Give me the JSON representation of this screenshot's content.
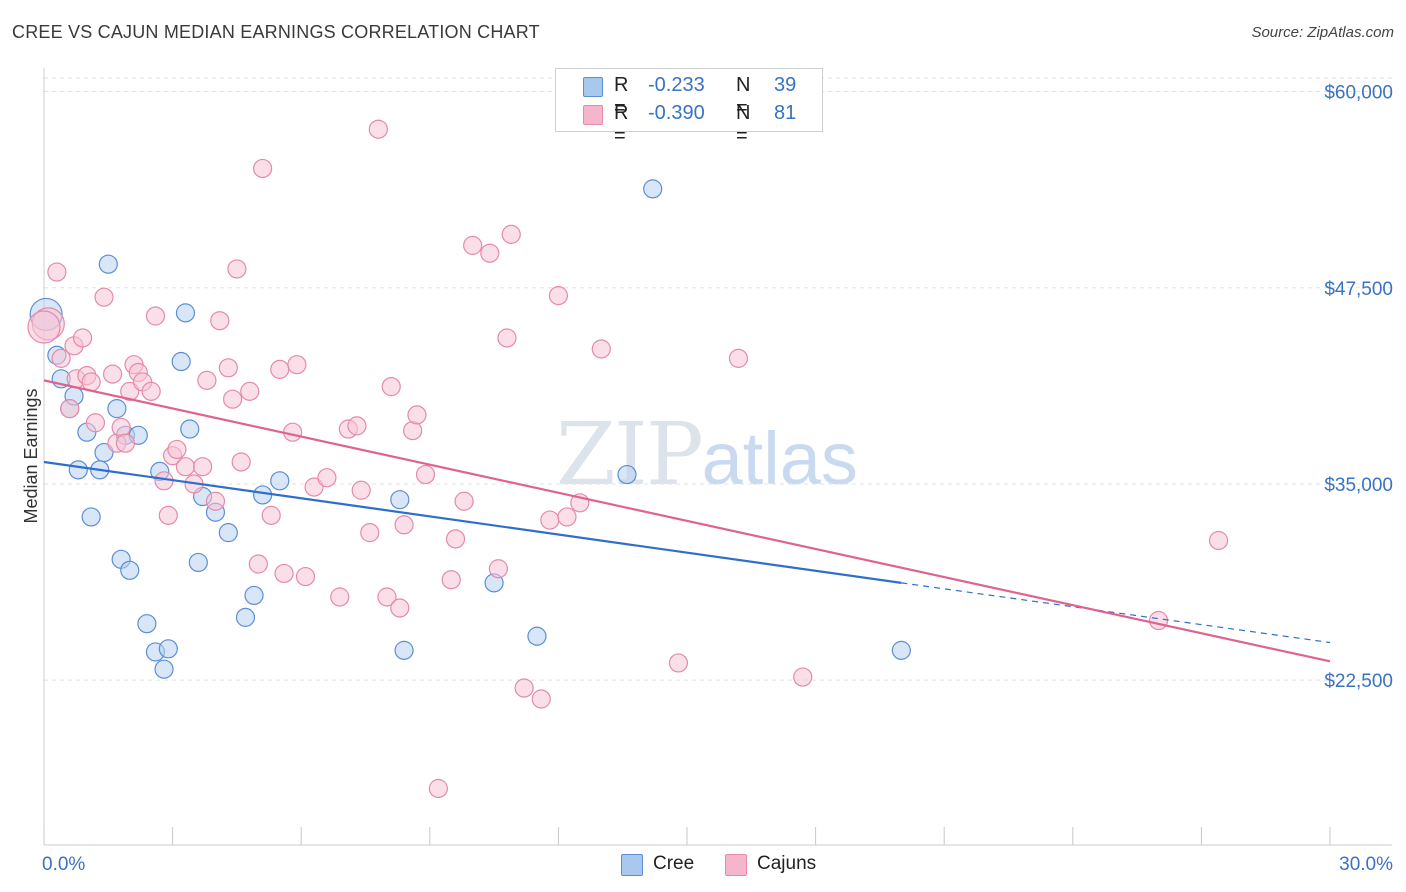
{
  "title": "CREE VS CAJUN MEDIAN EARNINGS CORRELATION CHART",
  "source": "Source: ZipAtlas.com",
  "watermark": {
    "zip": "ZIP",
    "atlas": "atlas"
  },
  "legend_top": [
    {
      "r_label": "R =",
      "r_value": "-0.233",
      "n_label": "N =",
      "n_value": "39",
      "color": "#a9c8ee"
    },
    {
      "r_label": "R =",
      "r_value": "-0.390",
      "n_label": "N =",
      "n_value": "81",
      "color": "#f5b5ca"
    }
  ],
  "legend_bottom": [
    {
      "label": "Cree",
      "color": "#a9c8ee"
    },
    {
      "label": "Cajuns",
      "color": "#f5b5ca"
    }
  ],
  "colors": {
    "cree_fill": "#b8d2f0",
    "cree_stroke": "#5a8fd6",
    "cree_line": "#2f6fcc",
    "cajun_fill": "#f8c4d5",
    "cajun_stroke": "#e58aa8",
    "cajun_line": "#e0628e",
    "tick_label": "#3a72c4",
    "grid": "#e2e2e2"
  },
  "chart_data": {
    "type": "scatter",
    "title": "CREE VS CAJUN MEDIAN EARNINGS CORRELATION CHART",
    "xlabel": "",
    "ylabel": "Median Earnings",
    "xlim": [
      0,
      30
    ],
    "ylim": [
      12000,
      61500
    ],
    "x_tick_labels": [
      {
        "value": 0,
        "label": "0.0%"
      },
      {
        "value": 30,
        "label": "30.0%"
      }
    ],
    "x_minor_ticks": [
      0,
      3,
      6,
      9,
      12,
      15,
      18,
      21,
      24,
      27,
      30
    ],
    "y_ticks": [
      {
        "value": 22500,
        "label": "$22,500"
      },
      {
        "value": 35000,
        "label": "$35,000"
      },
      {
        "value": 47500,
        "label": "$47,500"
      },
      {
        "value": 60000,
        "label": "$60,000"
      }
    ],
    "grid": true,
    "series": [
      {
        "name": "Cree",
        "trend": {
          "x1": 0,
          "y1": 36400,
          "x2": 20,
          "y2": 28700,
          "dash_to_x": 30,
          "dash_to_y": 24900
        },
        "points": [
          [
            0.05,
            45800
          ],
          [
            0.3,
            43200
          ],
          [
            0.4,
            41700
          ],
          [
            0.6,
            39800
          ],
          [
            0.7,
            40600
          ],
          [
            0.8,
            35900
          ],
          [
            1.0,
            38300
          ],
          [
            1.1,
            32900
          ],
          [
            1.3,
            35900
          ],
          [
            1.4,
            37000
          ],
          [
            1.5,
            49000
          ],
          [
            1.7,
            39800
          ],
          [
            1.8,
            30200
          ],
          [
            1.9,
            38100
          ],
          [
            2.0,
            29500
          ],
          [
            2.2,
            38100
          ],
          [
            2.4,
            26100
          ],
          [
            2.6,
            24300
          ],
          [
            2.7,
            35800
          ],
          [
            2.8,
            23200
          ],
          [
            2.9,
            24500
          ],
          [
            3.2,
            42800
          ],
          [
            3.3,
            45900
          ],
          [
            3.4,
            38500
          ],
          [
            3.6,
            30000
          ],
          [
            3.7,
            34200
          ],
          [
            4.0,
            33200
          ],
          [
            4.3,
            31900
          ],
          [
            4.7,
            26500
          ],
          [
            4.9,
            27900
          ],
          [
            5.1,
            34300
          ],
          [
            5.5,
            35200
          ],
          [
            8.3,
            34000
          ],
          [
            8.4,
            24400
          ],
          [
            10.5,
            28700
          ],
          [
            11.5,
            25300
          ],
          [
            13.6,
            35600
          ],
          [
            14.2,
            53800
          ],
          [
            20.0,
            24400
          ]
        ]
      },
      {
        "name": "Cajuns",
        "trend": {
          "x1": 0,
          "y1": 41600,
          "x2": 30,
          "y2": 23700
        },
        "points": [
          [
            0.1,
            45200
          ],
          [
            0.3,
            48500
          ],
          [
            0.4,
            43000
          ],
          [
            0.6,
            39800
          ],
          [
            0.7,
            43800
          ],
          [
            0.75,
            41700
          ],
          [
            0.9,
            44300
          ],
          [
            1.0,
            41900
          ],
          [
            1.1,
            41500
          ],
          [
            1.2,
            38900
          ],
          [
            1.4,
            46900
          ],
          [
            1.6,
            42000
          ],
          [
            1.7,
            37600
          ],
          [
            1.8,
            38600
          ],
          [
            1.9,
            37600
          ],
          [
            2.0,
            40900
          ],
          [
            2.1,
            42600
          ],
          [
            2.2,
            42100
          ],
          [
            2.3,
            41500
          ],
          [
            2.5,
            40900
          ],
          [
            2.6,
            45700
          ],
          [
            2.8,
            35200
          ],
          [
            2.9,
            33000
          ],
          [
            3.0,
            36800
          ],
          [
            3.1,
            37200
          ],
          [
            3.3,
            36100
          ],
          [
            3.5,
            35000
          ],
          [
            3.7,
            36100
          ],
          [
            3.8,
            41600
          ],
          [
            4.0,
            33900
          ],
          [
            4.1,
            45400
          ],
          [
            4.3,
            42400
          ],
          [
            4.4,
            40400
          ],
          [
            4.5,
            48700
          ],
          [
            4.6,
            36400
          ],
          [
            4.8,
            40900
          ],
          [
            5.0,
            29900
          ],
          [
            5.1,
            55100
          ],
          [
            5.3,
            33000
          ],
          [
            5.5,
            42300
          ],
          [
            5.6,
            29300
          ],
          [
            5.8,
            38300
          ],
          [
            5.9,
            42600
          ],
          [
            6.1,
            29100
          ],
          [
            6.3,
            34800
          ],
          [
            6.6,
            35400
          ],
          [
            6.9,
            27800
          ],
          [
            7.1,
            38500
          ],
          [
            7.3,
            38700
          ],
          [
            7.4,
            34600
          ],
          [
            7.6,
            31900
          ],
          [
            7.8,
            57600
          ],
          [
            8.0,
            27800
          ],
          [
            8.1,
            41200
          ],
          [
            8.3,
            27100
          ],
          [
            8.4,
            32400
          ],
          [
            8.6,
            38400
          ],
          [
            8.7,
            39400
          ],
          [
            8.9,
            35600
          ],
          [
            9.2,
            15600
          ],
          [
            9.5,
            28900
          ],
          [
            9.6,
            31500
          ],
          [
            9.8,
            33900
          ],
          [
            10.0,
            50200
          ],
          [
            10.4,
            49700
          ],
          [
            10.6,
            29600
          ],
          [
            10.8,
            44300
          ],
          [
            10.9,
            50900
          ],
          [
            11.2,
            22000
          ],
          [
            11.6,
            21300
          ],
          [
            11.8,
            32700
          ],
          [
            12.0,
            47000
          ],
          [
            12.2,
            32900
          ],
          [
            12.5,
            33800
          ],
          [
            13.0,
            43600
          ],
          [
            14.8,
            23600
          ],
          [
            16.2,
            43000
          ],
          [
            17.7,
            22700
          ],
          [
            26.0,
            26300
          ],
          [
            27.4,
            31400
          ],
          [
            0.0,
            45000
          ]
        ]
      }
    ]
  }
}
